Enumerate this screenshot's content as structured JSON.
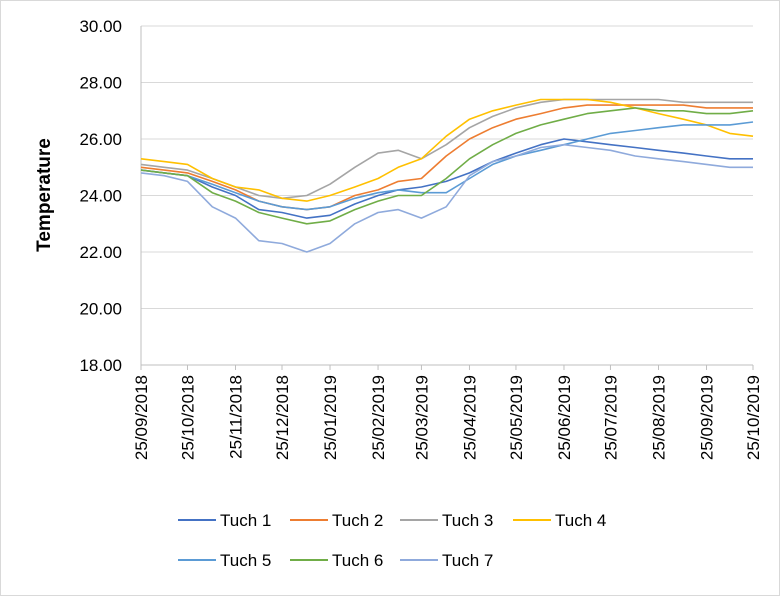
{
  "chart_data": {
    "type": "line",
    "title": "",
    "xlabel": "",
    "ylabel": "Temperature",
    "ylim": [
      18,
      30
    ],
    "yticks": [
      "18.00",
      "20.00",
      "22.00",
      "24.00",
      "26.00",
      "28.00",
      "30.00"
    ],
    "xlim": [
      "2018-09-25",
      "2019-10-25"
    ],
    "xticks": [
      "25/09/2018",
      "25/10/2018",
      "25/11/2018",
      "25/12/2018",
      "25/01/2019",
      "25/02/2019",
      "25/03/2019",
      "25/04/2019",
      "25/05/2019",
      "25/06/2019",
      "25/07/2019",
      "25/08/2019",
      "25/09/2019",
      "25/10/2019"
    ],
    "grid": "horizontal",
    "legend_position": "bottom",
    "series": [
      {
        "name": "Tuch 1",
        "color": "#4472c4",
        "x": [
          "2018-09-25",
          "2018-10-10",
          "2018-10-25",
          "2018-11-10",
          "2018-11-25",
          "2018-12-10",
          "2018-12-25",
          "2019-01-10",
          "2019-01-25",
          "2019-02-10",
          "2019-02-25",
          "2019-03-10",
          "2019-03-25",
          "2019-04-10",
          "2019-04-25",
          "2019-05-10",
          "2019-05-25",
          "2019-06-10",
          "2019-06-25",
          "2019-07-10",
          "2019-07-25",
          "2019-08-10",
          "2019-08-25",
          "2019-09-10",
          "2019-09-25",
          "2019-10-10",
          "2019-10-25"
        ],
        "y": [
          24.9,
          24.8,
          24.7,
          24.3,
          24.0,
          23.5,
          23.4,
          23.2,
          23.3,
          23.7,
          24.0,
          24.2,
          24.3,
          24.5,
          24.8,
          25.2,
          25.5,
          25.8,
          26.0,
          25.9,
          25.8,
          25.7,
          25.6,
          25.5,
          25.4,
          25.3,
          25.3
        ]
      },
      {
        "name": "Tuch 2",
        "color": "#ed7d31",
        "x": [
          "2018-09-25",
          "2018-10-10",
          "2018-10-25",
          "2018-11-10",
          "2018-11-25",
          "2018-12-10",
          "2018-12-25",
          "2019-01-10",
          "2019-01-25",
          "2019-02-10",
          "2019-02-25",
          "2019-03-10",
          "2019-03-25",
          "2019-04-10",
          "2019-04-25",
          "2019-05-10",
          "2019-05-25",
          "2019-06-10",
          "2019-06-25",
          "2019-07-10",
          "2019-07-25",
          "2019-08-10",
          "2019-08-25",
          "2019-09-10",
          "2019-09-25",
          "2019-10-10",
          "2019-10-25"
        ],
        "y": [
          25.0,
          24.9,
          24.8,
          24.5,
          24.2,
          23.8,
          23.6,
          23.5,
          23.6,
          24.0,
          24.2,
          24.5,
          24.6,
          25.4,
          26.0,
          26.4,
          26.7,
          26.9,
          27.1,
          27.2,
          27.2,
          27.2,
          27.2,
          27.2,
          27.1,
          27.1,
          27.1
        ]
      },
      {
        "name": "Tuch 3",
        "color": "#a5a5a5",
        "x": [
          "2018-09-25",
          "2018-10-10",
          "2018-10-25",
          "2018-11-10",
          "2018-11-25",
          "2018-12-10",
          "2018-12-25",
          "2019-01-10",
          "2019-01-25",
          "2019-02-10",
          "2019-02-25",
          "2019-03-10",
          "2019-03-25",
          "2019-04-10",
          "2019-04-25",
          "2019-05-10",
          "2019-05-25",
          "2019-06-10",
          "2019-06-25",
          "2019-07-10",
          "2019-07-25",
          "2019-08-10",
          "2019-08-25",
          "2019-09-10",
          "2019-09-25",
          "2019-10-10",
          "2019-10-25"
        ],
        "y": [
          25.1,
          25.0,
          24.9,
          24.6,
          24.3,
          24.0,
          23.9,
          24.0,
          24.4,
          25.0,
          25.5,
          25.6,
          25.3,
          25.8,
          26.4,
          26.8,
          27.1,
          27.3,
          27.4,
          27.4,
          27.4,
          27.4,
          27.4,
          27.3,
          27.3,
          27.3,
          27.3
        ]
      },
      {
        "name": "Tuch 4",
        "color": "#ffc000",
        "x": [
          "2018-09-25",
          "2018-10-10",
          "2018-10-25",
          "2018-11-10",
          "2018-11-25",
          "2018-12-10",
          "2018-12-25",
          "2019-01-10",
          "2019-01-25",
          "2019-02-10",
          "2019-02-25",
          "2019-03-10",
          "2019-03-25",
          "2019-04-10",
          "2019-04-25",
          "2019-05-10",
          "2019-05-25",
          "2019-06-10",
          "2019-06-25",
          "2019-07-10",
          "2019-07-25",
          "2019-08-10",
          "2019-08-25",
          "2019-09-10",
          "2019-09-25",
          "2019-10-10",
          "2019-10-25"
        ],
        "y": [
          25.3,
          25.2,
          25.1,
          24.6,
          24.3,
          24.2,
          23.9,
          23.8,
          24.0,
          24.3,
          24.6,
          25.0,
          25.3,
          26.1,
          26.7,
          27.0,
          27.2,
          27.4,
          27.4,
          27.4,
          27.3,
          27.1,
          26.9,
          26.7,
          26.5,
          26.2,
          26.1
        ]
      },
      {
        "name": "Tuch 5",
        "color": "#5b9bd5",
        "x": [
          "2018-09-25",
          "2018-10-10",
          "2018-10-25",
          "2018-11-10",
          "2018-11-25",
          "2018-12-10",
          "2018-12-25",
          "2019-01-10",
          "2019-01-25",
          "2019-02-10",
          "2019-02-25",
          "2019-03-10",
          "2019-03-25",
          "2019-04-10",
          "2019-04-25",
          "2019-05-10",
          "2019-05-25",
          "2019-06-10",
          "2019-06-25",
          "2019-07-10",
          "2019-07-25",
          "2019-08-10",
          "2019-08-25",
          "2019-09-10",
          "2019-09-25",
          "2019-10-10",
          "2019-10-25"
        ],
        "y": [
          24.9,
          24.8,
          24.7,
          24.4,
          24.1,
          23.8,
          23.6,
          23.5,
          23.6,
          23.9,
          24.1,
          24.2,
          24.1,
          24.1,
          24.6,
          25.1,
          25.4,
          25.6,
          25.8,
          26.0,
          26.2,
          26.3,
          26.4,
          26.5,
          26.5,
          26.5,
          26.6
        ]
      },
      {
        "name": "Tuch 6",
        "color": "#70ad47",
        "x": [
          "2018-09-25",
          "2018-10-10",
          "2018-10-25",
          "2018-11-10",
          "2018-11-25",
          "2018-12-10",
          "2018-12-25",
          "2019-01-10",
          "2019-01-25",
          "2019-02-10",
          "2019-02-25",
          "2019-03-10",
          "2019-03-25",
          "2019-04-10",
          "2019-04-25",
          "2019-05-10",
          "2019-05-25",
          "2019-06-10",
          "2019-06-25",
          "2019-07-10",
          "2019-07-25",
          "2019-08-10",
          "2019-08-25",
          "2019-09-10",
          "2019-09-25",
          "2019-10-10",
          "2019-10-25"
        ],
        "y": [
          24.9,
          24.8,
          24.7,
          24.1,
          23.8,
          23.4,
          23.2,
          23.0,
          23.1,
          23.5,
          23.8,
          24.0,
          24.0,
          24.6,
          25.3,
          25.8,
          26.2,
          26.5,
          26.7,
          26.9,
          27.0,
          27.1,
          27.0,
          27.0,
          26.9,
          26.9,
          27.0
        ]
      },
      {
        "name": "Tuch 7",
        "color": "#8faadc",
        "x": [
          "2018-09-25",
          "2018-10-10",
          "2018-10-25",
          "2018-11-10",
          "2018-11-25",
          "2018-12-10",
          "2018-12-25",
          "2019-01-10",
          "2019-01-25",
          "2019-02-10",
          "2019-02-25",
          "2019-03-10",
          "2019-03-25",
          "2019-04-10",
          "2019-04-25",
          "2019-05-10",
          "2019-05-25",
          "2019-06-10",
          "2019-06-25",
          "2019-07-10",
          "2019-07-25",
          "2019-08-10",
          "2019-08-25",
          "2019-09-10",
          "2019-09-25",
          "2019-10-10",
          "2019-10-25"
        ],
        "y": [
          24.8,
          24.7,
          24.5,
          23.6,
          23.2,
          22.4,
          22.3,
          22.0,
          22.3,
          23.0,
          23.4,
          23.5,
          23.2,
          23.6,
          24.7,
          25.2,
          25.4,
          25.7,
          25.8,
          25.7,
          25.6,
          25.4,
          25.3,
          25.2,
          25.1,
          25.0,
          25.0
        ]
      }
    ]
  }
}
